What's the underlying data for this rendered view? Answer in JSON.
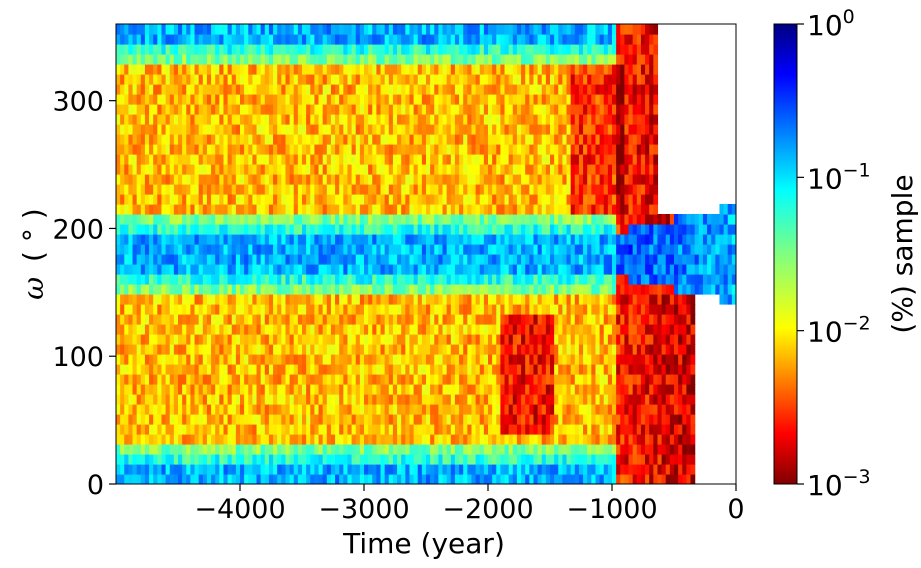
{
  "chart_data": {
    "type": "heatmap",
    "title": "",
    "xlabel": "Time (year)",
    "ylabel_symbol": "ω",
    "ylabel_unit": "( ° )",
    "xlim": [
      -5000,
      0
    ],
    "ylim": [
      0,
      360
    ],
    "x_ticks": [
      -4000,
      -3000,
      -2000,
      -1000,
      0
    ],
    "x_tick_labels": [
      "−4000",
      "−3000",
      "−2000",
      "−1000",
      "0"
    ],
    "y_ticks": [
      0,
      100,
      200,
      300
    ],
    "y_tick_labels": [
      "0",
      "100",
      "200",
      "300"
    ],
    "colorbar": {
      "label": "(%) sample",
      "scale": "log",
      "colormap": "jet_r",
      "range": [
        0.001,
        1
      ],
      "ticks": [
        {
          "base": "10",
          "exp": "0",
          "value": 1
        },
        {
          "base": "10",
          "exp": "−1",
          "value": 0.1
        },
        {
          "base": "10",
          "exp": "−2",
          "value": 0.01
        },
        {
          "base": "10",
          "exp": "−3",
          "value": 0.001
        }
      ]
    },
    "bands": [
      {
        "omega_center": 10,
        "level": 0.15,
        "note": "high density near 0"
      },
      {
        "omega_center": 85,
        "level": 0.006,
        "note": "low density"
      },
      {
        "omega_center": 180,
        "level": 0.15,
        "note": "high density near 180"
      },
      {
        "omega_center": 270,
        "level": 0.006,
        "note": "low density"
      },
      {
        "omega_center": 350,
        "level": 0.15,
        "note": "high density near 360"
      }
    ]
  }
}
